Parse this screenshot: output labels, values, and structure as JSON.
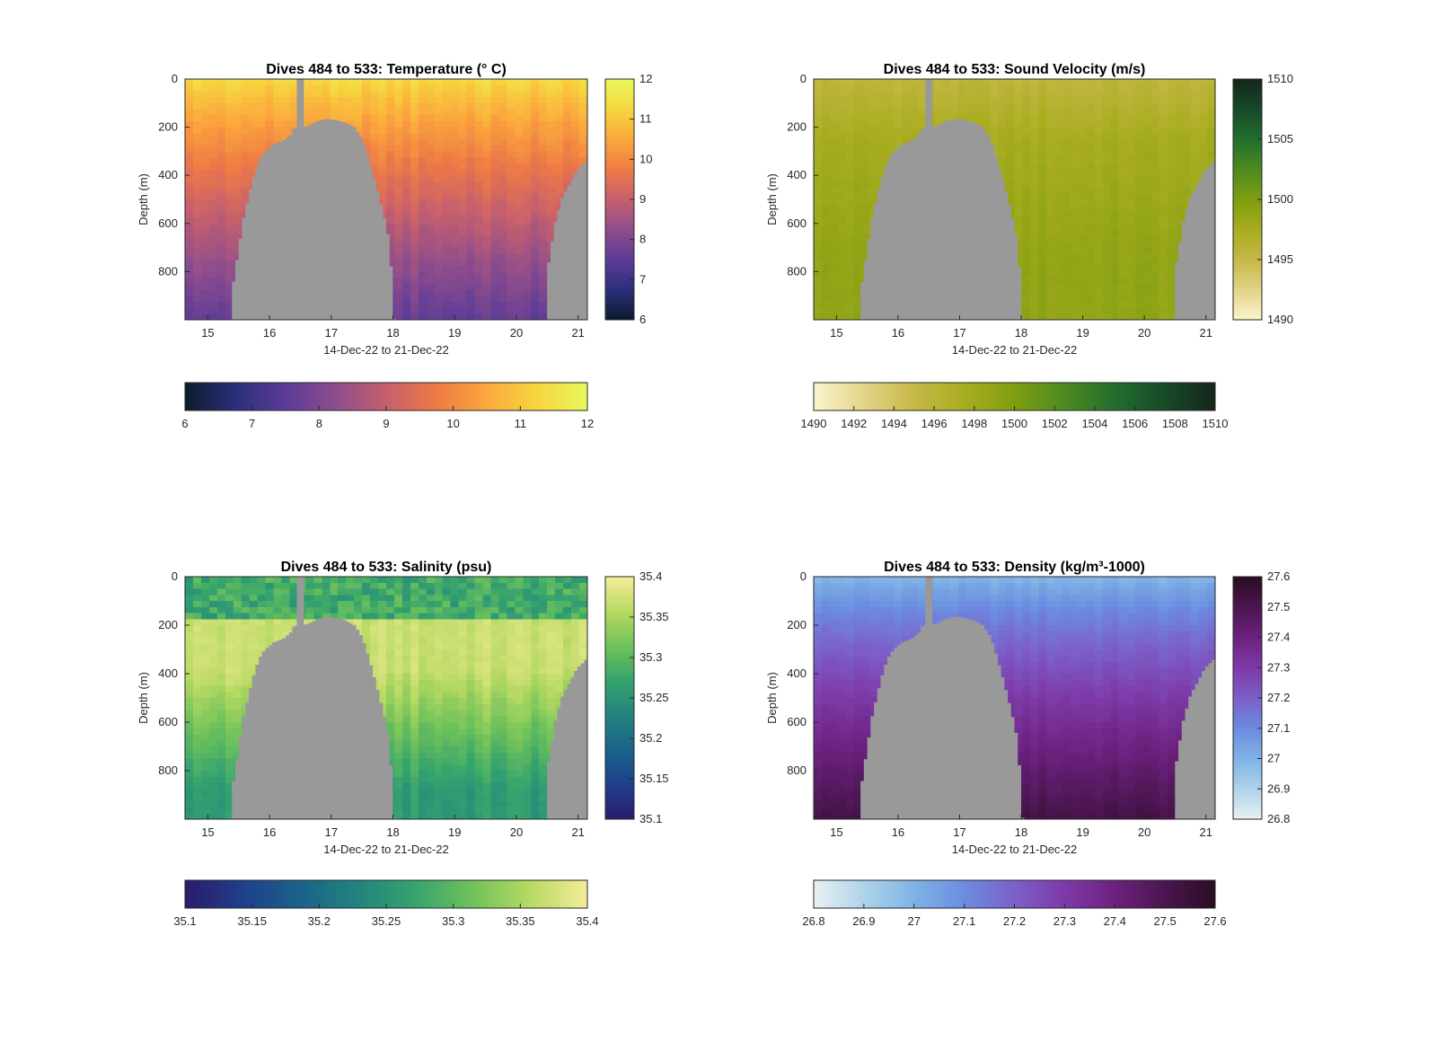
{
  "chart_data": [
    {
      "type": "heatmap",
      "title": "Dives 484 to 533: Temperature (° C)",
      "xlabel": "14-Dec-22 to 21-Dec-22",
      "ylabel": "Depth (m)",
      "x_ticks": [
        "15",
        "16",
        "17",
        "18",
        "19",
        "20",
        "21"
      ],
      "xlim": [
        14.63,
        21.15
      ],
      "y_ticks": [
        "0",
        "200",
        "400",
        "600",
        "800"
      ],
      "ylim": [
        0,
        1000
      ],
      "y_reversed": true,
      "colorbar_ticks": [
        "6",
        "7",
        "8",
        "9",
        "10",
        "11",
        "12"
      ],
      "clim": [
        6,
        12
      ],
      "colormap": [
        "#0b1a2c",
        "#2a2f7a",
        "#5c3b97",
        "#8e4d8c",
        "#c65f6e",
        "#ee7a45",
        "#fba83d",
        "#f7d53f",
        "#e9f75d"
      ],
      "profile": {
        "surface": 11.4,
        "deep": 7.6,
        "shape": "warm-surface"
      },
      "bathymetry": {
        "x": [
          14.63,
          15.38,
          15.38,
          15.55,
          15.7,
          15.8,
          15.9,
          16.05,
          16.2,
          16.32,
          16.38,
          16.48,
          16.6,
          16.75,
          16.9,
          17.05,
          17.2,
          17.35,
          17.48,
          17.58,
          17.7,
          17.82,
          17.92,
          18.0,
          18.02,
          20.47,
          20.48,
          20.6,
          20.72,
          20.83,
          20.95,
          21.07,
          21.15
        ],
        "floor_depth": [
          1000,
          1000,
          860,
          580,
          420,
          340,
          300,
          270,
          255,
          230,
          200,
          200,
          195,
          175,
          165,
          170,
          180,
          200,
          250,
          330,
          440,
          560,
          680,
          1000,
          1000,
          1000,
          790,
          600,
          490,
          440,
          380,
          350,
          330
        ]
      },
      "gap": {
        "x": 16.5,
        "max_depth": 200
      }
    },
    {
      "type": "heatmap",
      "title": "Dives 484 to 533: Sound Velocity (m/s)",
      "xlabel": "14-Dec-22 to 21-Dec-22",
      "ylabel": "Depth (m)",
      "x_ticks": [
        "15",
        "16",
        "17",
        "18",
        "19",
        "20",
        "21"
      ],
      "xlim": [
        14.63,
        21.15
      ],
      "y_ticks": [
        "0",
        "200",
        "400",
        "600",
        "800"
      ],
      "ylim": [
        0,
        1000
      ],
      "y_reversed": true,
      "colorbar_ticks": [
        "1490",
        "1492",
        "1494",
        "1496",
        "1498",
        "1500",
        "1502",
        "1504",
        "1506",
        "1508",
        "1510"
      ],
      "colorbar_ticks_side": [
        "1490",
        "1495",
        "1500",
        "1505",
        "1510"
      ],
      "clim": [
        1490,
        1510
      ],
      "colormap": [
        "#fbf5cd",
        "#e3d489",
        "#c6b847",
        "#a8ad1f",
        "#7f9e10",
        "#4e8a1f",
        "#226e2e",
        "#174a28",
        "#15261b"
      ],
      "profile": {
        "surface": 1495.6,
        "deep": 1498.9,
        "shape": "sound-velocity"
      },
      "bathymetry": {
        "x": [
          14.63,
          15.38,
          15.38,
          15.55,
          15.7,
          15.8,
          15.9,
          16.05,
          16.2,
          16.32,
          16.38,
          16.48,
          16.6,
          16.75,
          16.9,
          17.05,
          17.2,
          17.35,
          17.48,
          17.58,
          17.7,
          17.82,
          17.92,
          18.0,
          18.02,
          20.47,
          20.48,
          20.6,
          20.72,
          20.83,
          20.95,
          21.07,
          21.15
        ],
        "floor_depth": [
          1000,
          1000,
          860,
          580,
          420,
          340,
          300,
          270,
          255,
          230,
          200,
          200,
          195,
          175,
          165,
          170,
          180,
          200,
          250,
          330,
          440,
          560,
          680,
          1000,
          1000,
          1000,
          790,
          600,
          490,
          440,
          380,
          350,
          330
        ]
      },
      "gap": {
        "x": 16.5,
        "max_depth": 200
      }
    },
    {
      "type": "heatmap",
      "title": "Dives 484 to 533: Salinity (psu)",
      "xlabel": "14-Dec-22 to 21-Dec-22",
      "ylabel": "Depth (m)",
      "x_ticks": [
        "15",
        "16",
        "17",
        "18",
        "19",
        "20",
        "21"
      ],
      "xlim": [
        14.63,
        21.15
      ],
      "y_ticks": [
        "0",
        "200",
        "400",
        "600",
        "800"
      ],
      "ylim": [
        0,
        1000
      ],
      "y_reversed": true,
      "colorbar_ticks": [
        "35.1",
        "35.15",
        "35.2",
        "35.25",
        "35.3",
        "35.35",
        "35.4"
      ],
      "clim": [
        35.1,
        35.4
      ],
      "colormap": [
        "#2a1c6b",
        "#1f3f8a",
        "#1a6289",
        "#22837f",
        "#35a36e",
        "#6fc25a",
        "#b7d962",
        "#f4ec98"
      ],
      "profile": {
        "surface": 35.28,
        "mid": 35.37,
        "deep": 35.26,
        "shape": "salinity-max"
      },
      "bathymetry": {
        "x": [
          14.63,
          15.38,
          15.38,
          15.55,
          15.7,
          15.8,
          15.9,
          16.05,
          16.2,
          16.32,
          16.38,
          16.48,
          16.6,
          16.75,
          16.9,
          17.05,
          17.2,
          17.35,
          17.48,
          17.58,
          17.7,
          17.82,
          17.92,
          18.0,
          18.02,
          20.47,
          20.48,
          20.6,
          20.72,
          20.83,
          20.95,
          21.07,
          21.15
        ],
        "floor_depth": [
          1000,
          1000,
          860,
          580,
          420,
          340,
          300,
          270,
          255,
          230,
          200,
          200,
          195,
          175,
          165,
          170,
          180,
          200,
          250,
          330,
          440,
          560,
          680,
          1000,
          1000,
          1000,
          790,
          600,
          490,
          440,
          380,
          350,
          330
        ]
      },
      "gap": {
        "x": 16.5,
        "max_depth": 200
      }
    },
    {
      "type": "heatmap",
      "title": "Dives 484 to 533: Density (kg/m³-1000)",
      "xlabel": "14-Dec-22 to 21-Dec-22",
      "ylabel": "Depth (m)",
      "x_ticks": [
        "15",
        "16",
        "17",
        "18",
        "19",
        "20",
        "21"
      ],
      "xlim": [
        14.63,
        21.15
      ],
      "y_ticks": [
        "0",
        "200",
        "400",
        "600",
        "800"
      ],
      "ylim": [
        0,
        1000
      ],
      "y_reversed": true,
      "colorbar_ticks": [
        "26.8",
        "26.9",
        "27",
        "27.1",
        "27.2",
        "27.3",
        "27.4",
        "27.5",
        "27.6"
      ],
      "clim": [
        26.8,
        27.6
      ],
      "colormap": [
        "#e9f1f2",
        "#aed3ea",
        "#7fb3e6",
        "#6b8ce0",
        "#7c60c9",
        "#7d3aa8",
        "#6c217f",
        "#4b154f",
        "#2a0c22"
      ],
      "profile": {
        "surface": 26.98,
        "deep": 27.52,
        "shape": "density"
      },
      "bathymetry": {
        "x": [
          14.63,
          15.38,
          15.38,
          15.55,
          15.7,
          15.8,
          15.9,
          16.05,
          16.2,
          16.32,
          16.38,
          16.48,
          16.6,
          16.75,
          16.9,
          17.05,
          17.2,
          17.35,
          17.48,
          17.58,
          17.7,
          17.82,
          17.92,
          18.0,
          18.02,
          20.47,
          20.48,
          20.6,
          20.72,
          20.83,
          20.95,
          21.07,
          21.15
        ],
        "floor_depth": [
          1000,
          1000,
          860,
          580,
          420,
          340,
          300,
          270,
          255,
          230,
          200,
          200,
          195,
          175,
          165,
          170,
          180,
          200,
          250,
          330,
          440,
          560,
          680,
          1000,
          1000,
          1000,
          790,
          600,
          490,
          440,
          380,
          350,
          330
        ]
      },
      "gap": {
        "x": 16.5,
        "max_depth": 200
      }
    }
  ],
  "colors": {
    "bathymetry": "#999999",
    "axes": "#262626"
  }
}
